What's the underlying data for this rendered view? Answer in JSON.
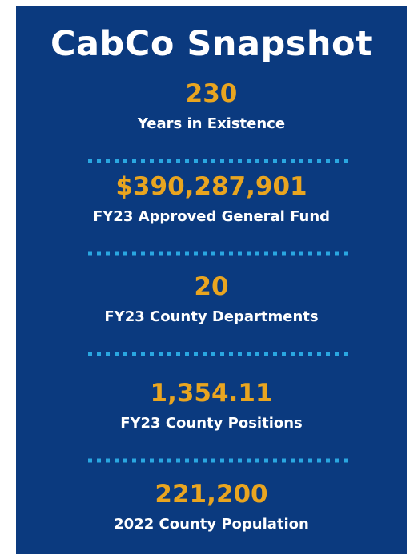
{
  "title": "CabCo Snapshot",
  "stats": [
    {
      "value": "230",
      "label": "Years in Existence"
    },
    {
      "value": "$390,287,901",
      "label": "FY23 Approved General Fund"
    },
    {
      "value": "20",
      "label": "FY23 County Departments"
    },
    {
      "value": "1,354.11",
      "label": "FY23 County Positions"
    },
    {
      "value": "221,200",
      "label": "2022 County Population"
    }
  ]
}
